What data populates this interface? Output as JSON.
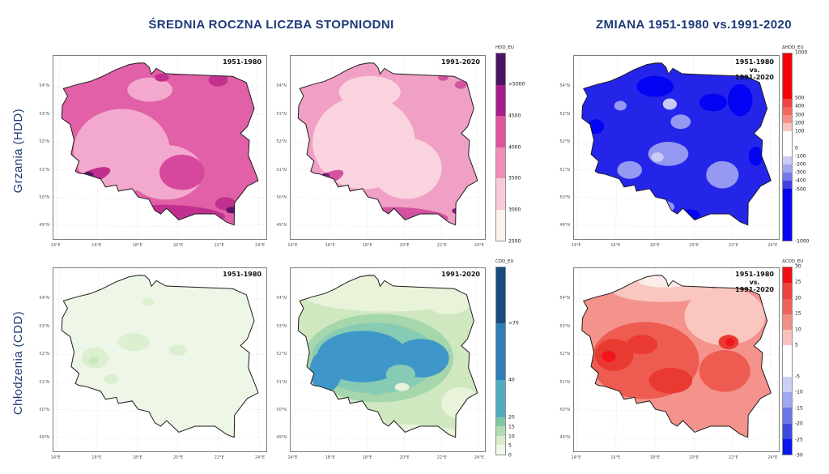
{
  "header": {
    "left_title": "ŚREDNIA ROCZNA LICZBA STOPNIODNI",
    "right_title": "ZMIANA 1951-1980 vs.1991-2020",
    "title_color": "#1e3a78"
  },
  "row_labels": {
    "hdd": "Grzania (HDD)",
    "cdd": "Chłodzenia (CDD)"
  },
  "axes": {
    "lat_ticks": [
      "54°N",
      "53°N",
      "52°N",
      "51°N",
      "50°N",
      "49°N"
    ],
    "lat_pos": [
      16.7,
      31.8,
      46.9,
      62.1,
      77.2,
      92.3
    ],
    "lon_ticks": [
      "14°E",
      "16°E",
      "18°E",
      "20°E",
      "22°E",
      "24°E"
    ],
    "lon_pos": [
      1.4,
      20.5,
      39.5,
      58.5,
      77.6,
      96.6
    ]
  },
  "maps": {
    "hdd_1951": {
      "label": "1951-1980",
      "layers": {
        "base": "#e160a7",
        "light": "#f3a8cd",
        "mid": "#d7489c",
        "dark": "#c2308f",
        "darkest": "#5c156b"
      }
    },
    "hdd_1991": {
      "label": "1991-2020",
      "layers": {
        "base": "#f1a0c5",
        "light": "#f9d3dd",
        "dark": "#d4539e",
        "darkest": "#7f1b77"
      }
    },
    "hdd_diff": {
      "label": "1951-1980\nvs.\n1991-2020",
      "layers": {
        "base": "#2525ea",
        "dark": "#0404f4",
        "light": "#9599f1",
        "lighter": "#c8cbf8"
      }
    },
    "cdd_1951": {
      "label": "1951-1980",
      "layers": {
        "base": "#eef6e7",
        "blob": "#dcefd0",
        "spot": "#c9e7c1"
      }
    },
    "cdd_1991": {
      "label": "1991-2020",
      "layers": {
        "base": "#cfe8c0",
        "pale": "#e9f3da",
        "green": "#a5d6ac",
        "teal": "#88cbb4",
        "blue": "#3e97c8"
      }
    },
    "cdd_diff": {
      "label": "1951-1980\nvs.\n1991-2020",
      "layers": {
        "base": "#f4938b",
        "pale": "#f9c6c0",
        "fringe": "#fdedea",
        "mid": "#ee5b51",
        "dark": "#e93a31",
        "bright": "#f3151b"
      }
    }
  },
  "colorbars": {
    "hdd": {
      "title": "HDD_EU",
      "segments": [
        {
          "color": "#4b1566",
          "u": 1
        },
        {
          "color": "#a81d8c",
          "u": 1
        },
        {
          "color": "#e0549f",
          "u": 1
        },
        {
          "color": "#f090ba",
          "u": 1
        },
        {
          "color": "#f7ccd8",
          "u": 1
        },
        {
          "color": "#fdf2ee",
          "u": 1
        }
      ],
      "ticks": [
        {
          "label": ">5000",
          "u": 1
        },
        {
          "label": "4500",
          "u": 2
        },
        {
          "label": "4000",
          "u": 3
        },
        {
          "label": "3500",
          "u": 4
        },
        {
          "label": "3000",
          "u": 5
        },
        {
          "label": "2500",
          "u": 6
        }
      ]
    },
    "hdd_diff": {
      "title": "ΔHDD_EU",
      "segments": [
        {
          "color": "#f60205",
          "u": 5.5
        },
        {
          "color": "#f4423e",
          "u": 1
        },
        {
          "color": "#f2665e",
          "u": 1
        },
        {
          "color": "#f5918a",
          "u": 1
        },
        {
          "color": "#fac5c1",
          "u": 1
        },
        {
          "color": "#ffffff",
          "u": 2
        },
        {
          "color": "#ffffff",
          "u": 1
        },
        {
          "color": "#cbcbf7",
          "u": 1
        },
        {
          "color": "#a4a5f0",
          "u": 1
        },
        {
          "color": "#7477eb",
          "u": 1
        },
        {
          "color": "#4240e3",
          "u": 1
        },
        {
          "color": "#0503f2",
          "u": 6.3
        }
      ],
      "ticks": [
        {
          "label": "1000",
          "u": 0
        },
        {
          "label": "500",
          "u": 5.5
        },
        {
          "label": "400",
          "u": 6.5
        },
        {
          "label": "300",
          "u": 7.5
        },
        {
          "label": "200",
          "u": 8.5
        },
        {
          "label": "100",
          "u": 9.5
        },
        {
          "label": "0",
          "u": 11.5
        },
        {
          "label": "-100",
          "u": 12.5
        },
        {
          "label": "-200",
          "u": 13.5
        },
        {
          "label": "-300",
          "u": 14.5
        },
        {
          "label": "-400",
          "u": 15.5
        },
        {
          "label": "-500",
          "u": 16.5
        },
        {
          "label": "-1000",
          "u": 22.8
        }
      ]
    },
    "cdd": {
      "title": "CDD_EU",
      "segments": [
        {
          "color": "#1a4a7e",
          "u": 6
        },
        {
          "color": "#2f7eb8",
          "u": 6
        },
        {
          "color": "#54aac2",
          "u": 4
        },
        {
          "color": "#82c7a4",
          "u": 1
        },
        {
          "color": "#b2ddb0",
          "u": 1
        },
        {
          "color": "#d9eecb",
          "u": 1
        },
        {
          "color": "#f0f8e8",
          "u": 1
        }
      ],
      "ticks": [
        {
          "label": ">70",
          "u": 6
        },
        {
          "label": "40",
          "u": 12
        },
        {
          "label": "20",
          "u": 16
        },
        {
          "label": "15",
          "u": 17
        },
        {
          "label": "10",
          "u": 18
        },
        {
          "label": "5",
          "u": 19
        },
        {
          "label": "0",
          "u": 20
        }
      ]
    },
    "cdd_diff": {
      "title": "ΔCDD_EU",
      "segments": [
        {
          "color": "#f20d12",
          "u": 1
        },
        {
          "color": "#ee403c",
          "u": 1
        },
        {
          "color": "#ef625a",
          "u": 1
        },
        {
          "color": "#f38e86",
          "u": 1
        },
        {
          "color": "#f9c3bd",
          "u": 1
        },
        {
          "color": "#ffffff",
          "u": 2
        },
        {
          "color": "#ccd0f7",
          "u": 1
        },
        {
          "color": "#9fa7f0",
          "u": 1
        },
        {
          "color": "#6b77e9",
          "u": 1
        },
        {
          "color": "#3b49e2",
          "u": 1
        },
        {
          "color": "#0a17ee",
          "u": 1
        }
      ],
      "ticks": [
        {
          "label": "30",
          "u": 0
        },
        {
          "label": "25",
          "u": 1
        },
        {
          "label": "20",
          "u": 2
        },
        {
          "label": "15",
          "u": 3
        },
        {
          "label": "10",
          "u": 4
        },
        {
          "label": "5",
          "u": 5
        },
        {
          "label": "-5",
          "u": 7
        },
        {
          "label": "-10",
          "u": 8
        },
        {
          "label": "-15",
          "u": 9
        },
        {
          "label": "-20",
          "u": 10
        },
        {
          "label": "-25",
          "u": 11
        },
        {
          "label": "-30",
          "u": 12
        }
      ]
    }
  }
}
